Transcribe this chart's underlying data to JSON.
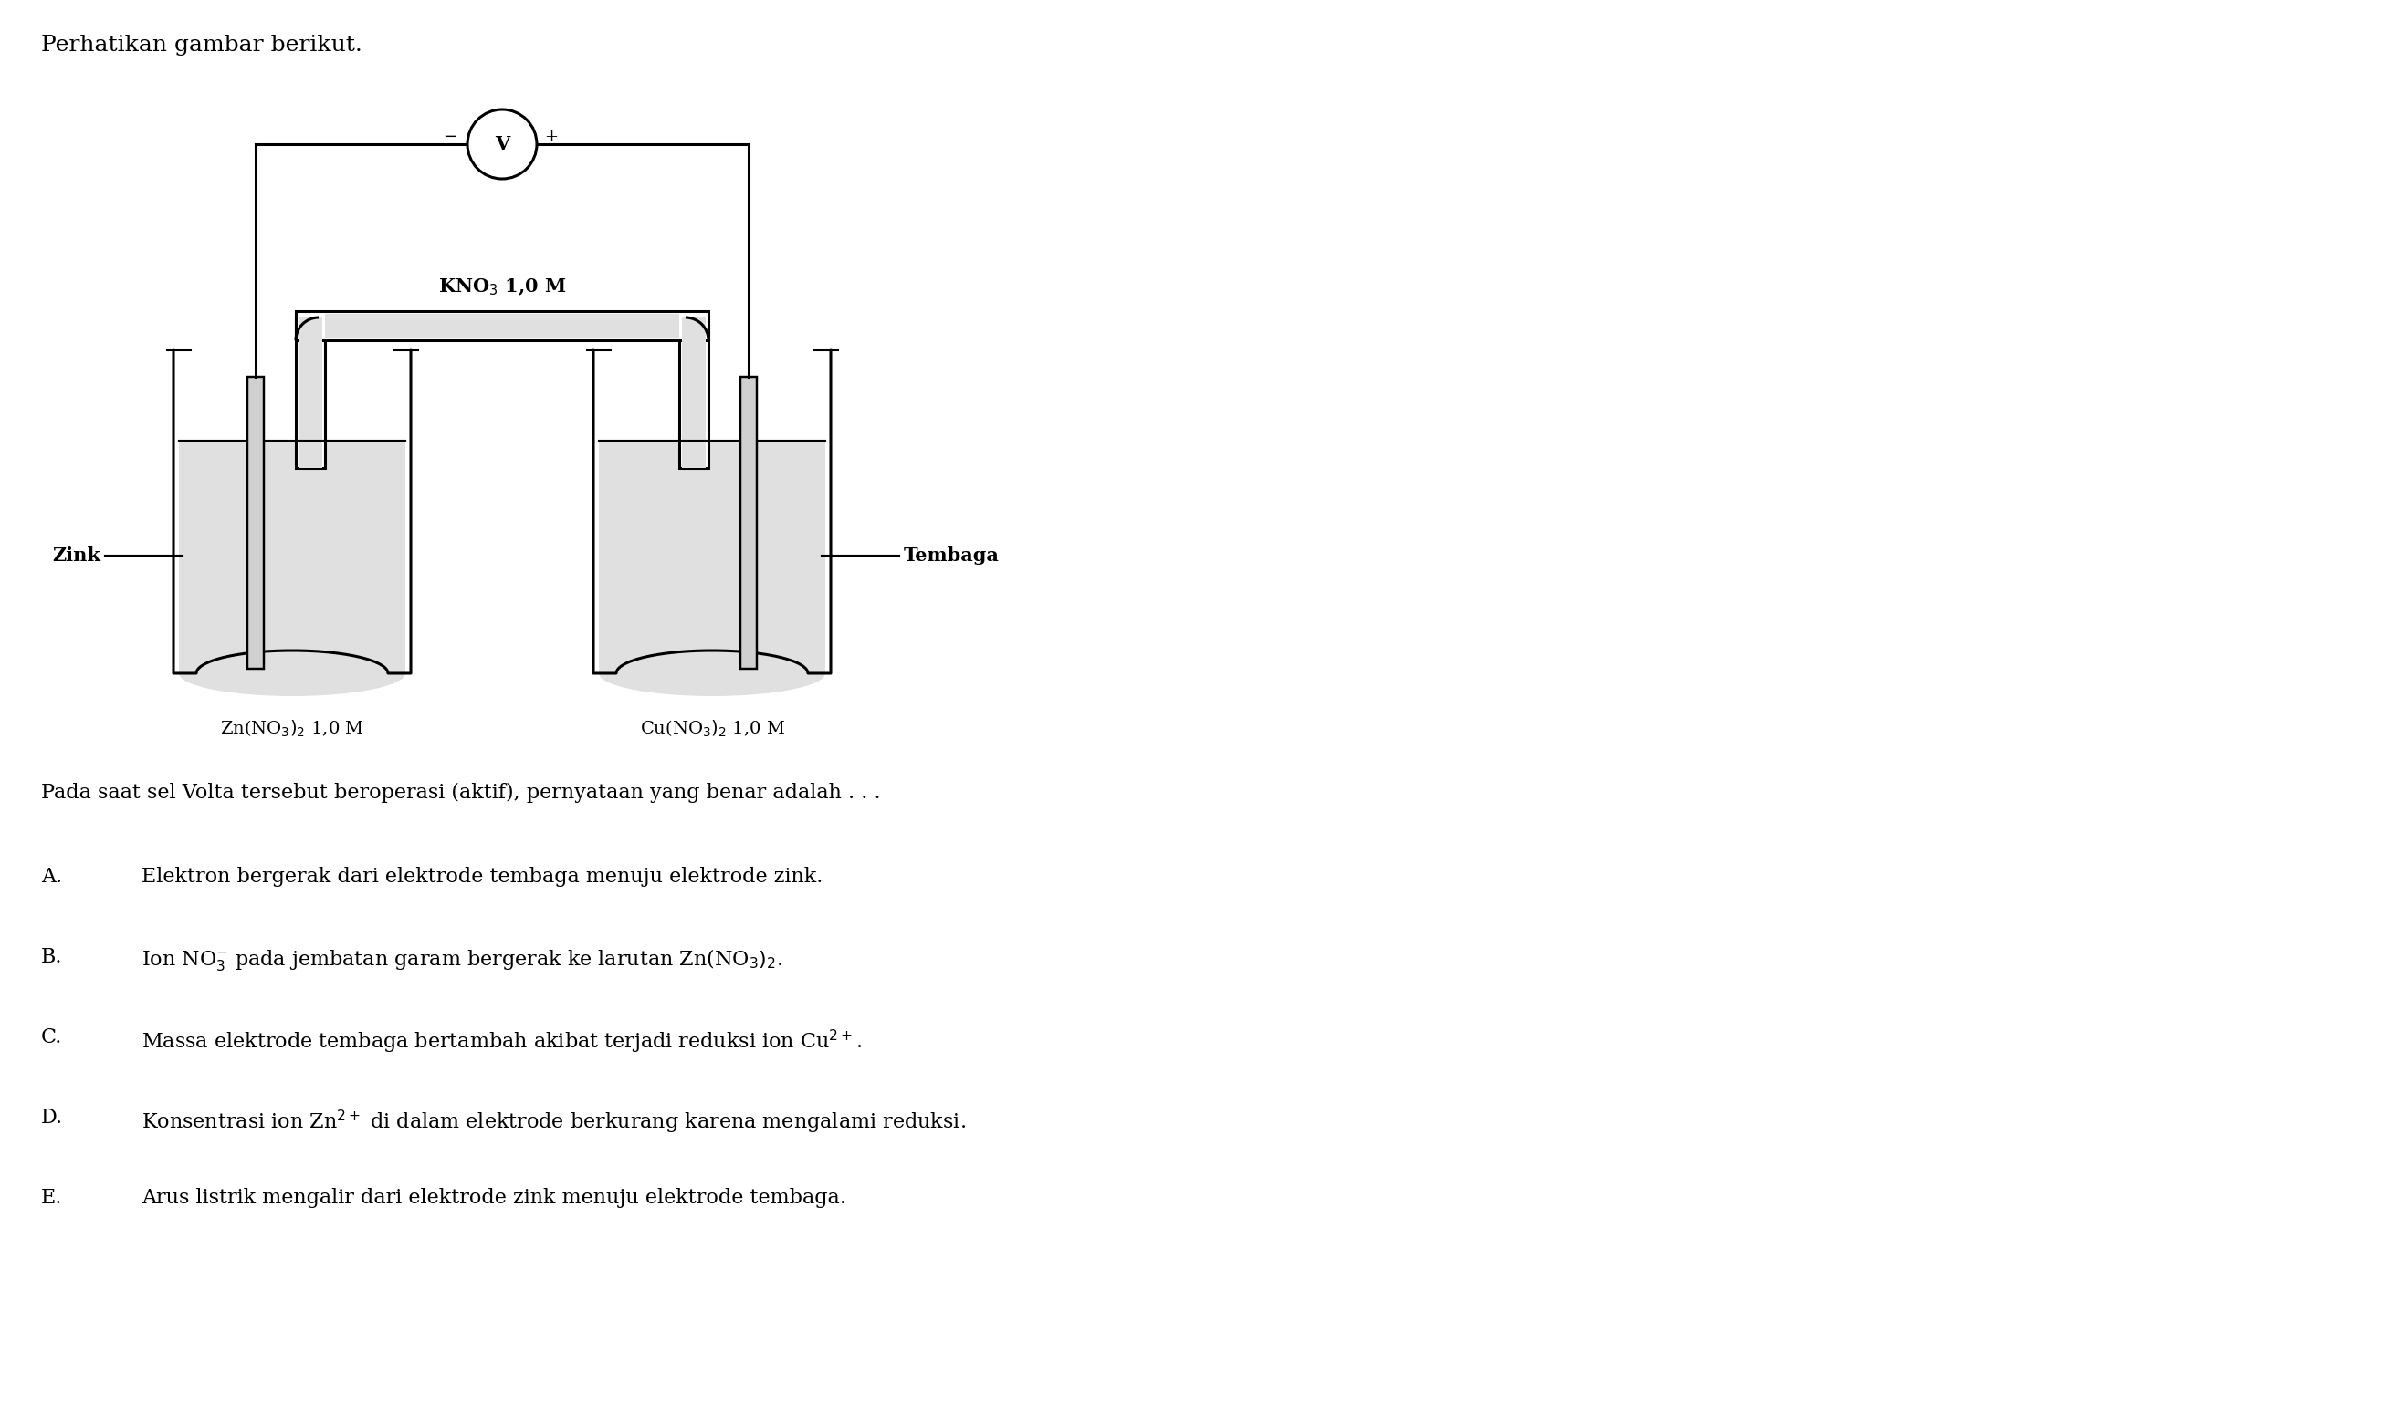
{
  "title": "Perhatikan gambar berikut.",
  "background_color": "#ffffff",
  "fig_width": 26.3,
  "fig_height": 15.63,
  "question_text": "Pada saat sel Volta tersebut beroperasi (aktif), pernyataan yang benar adalah . . .",
  "opt_A": "Elektron bergerak dari elektrode tembaga menuju elektrode zink.",
  "opt_B": "Ion NO$_3^{-}$ pada jembatan garam bergerak ke larutan Zn(NO$_3)_2$.",
  "opt_C": "Massa elektrode tembaga bertambah akibat terjadi reduksi ion Cu$^{2+}$.",
  "opt_D": "Konsentrasi ion Zn$^{2+}$ di dalam elektrode berkurang karena mengalami reduksi.",
  "opt_E": "Arus listrik mengalir dari elektrode zink menuju elektrode tembaga.",
  "left_beaker_label": "Zink",
  "right_beaker_label": "Tembaga",
  "left_solution_label": "Zn(NO$_3)_2$ 1,0 M",
  "right_solution_label": "Cu(NO$_3)_2$ 1,0 M",
  "salt_bridge_label": "KNO$_3$ 1,0 M",
  "voltmeter_label": "V",
  "line_color": "#000000",
  "solution_color": "#e0e0e0",
  "text_color": "#000000",
  "lw": 2.2
}
